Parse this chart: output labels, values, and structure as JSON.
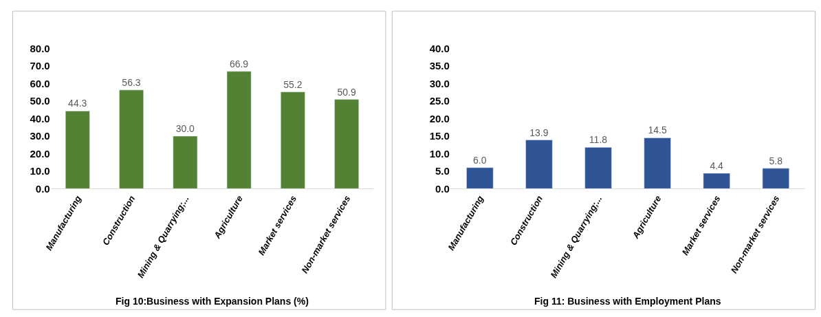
{
  "chart_data": [
    {
      "type": "bar",
      "title": "Fig 10:Business with Expansion Plans (%)",
      "categories": [
        "Manufacturing",
        "Construction",
        "Mining & Quarrying;...",
        "Agriculture",
        "Market services",
        "Non-market services"
      ],
      "values": [
        44.3,
        56.3,
        30.0,
        66.9,
        55.2,
        50.9
      ],
      "value_labels": [
        "44.3",
        "56.3",
        "30.0",
        "66.9",
        "55.2",
        "50.9"
      ],
      "color": "#548235",
      "ylim": [
        0,
        80
      ],
      "yticks": [
        {
          "value": 0,
          "label": "0.0"
        },
        {
          "value": 10,
          "label": "10.0"
        },
        {
          "value": 20,
          "label": "20.0"
        },
        {
          "value": 30,
          "label": "30.0"
        },
        {
          "value": 40,
          "label": "40.0"
        },
        {
          "value": 50,
          "label": "50.0"
        },
        {
          "value": 60,
          "label": "60.0"
        },
        {
          "value": 70,
          "label": "70.0"
        },
        {
          "value": 80,
          "label": "80.0"
        }
      ]
    },
    {
      "type": "bar",
      "title": "Fig 11: Business with Employment Plans",
      "categories": [
        "Manufacturing",
        "Construction",
        "Mining & Quarrying;...",
        "Agriculture",
        "Market services",
        "Non-market services"
      ],
      "values": [
        6.0,
        13.9,
        11.8,
        14.5,
        4.4,
        5.8
      ],
      "value_labels": [
        "6.0",
        "13.9",
        "11.8",
        "14.5",
        "4.4",
        "5.8"
      ],
      "color": "#2f5597",
      "ylim": [
        0,
        40
      ],
      "yticks": [
        {
          "value": 0,
          "label": "0.0"
        },
        {
          "value": 5,
          "label": "5.0"
        },
        {
          "value": 10,
          "label": "10.0"
        },
        {
          "value": 15,
          "label": "15.0"
        },
        {
          "value": 20,
          "label": "20.0"
        },
        {
          "value": 25,
          "label": "25.0"
        },
        {
          "value": 30,
          "label": "30.0"
        },
        {
          "value": 35,
          "label": "35.0"
        },
        {
          "value": 40,
          "label": "40.0"
        }
      ]
    }
  ]
}
